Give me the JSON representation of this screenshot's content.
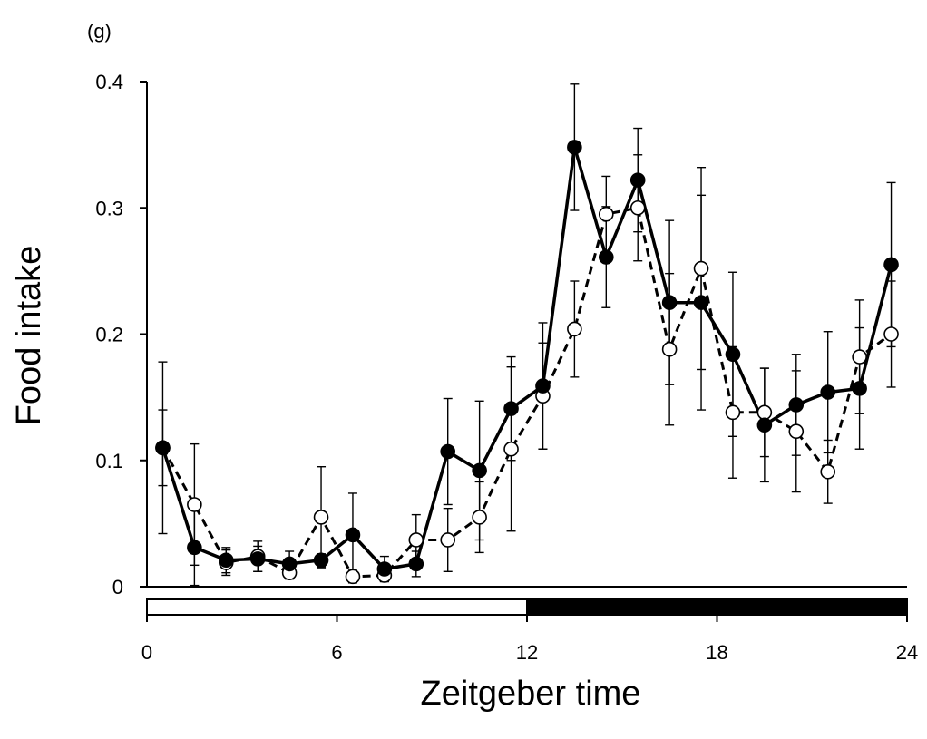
{
  "chart_data": {
    "type": "line",
    "panel_label": "(g)",
    "xlabel": "Zeitgeber time",
    "ylabel": "Food intake",
    "xlim": [
      0,
      24
    ],
    "ylim": [
      0,
      0.4
    ],
    "x_ticks": [
      0,
      6,
      12,
      18,
      24
    ],
    "x_tick_labels": [
      "0",
      "6",
      "12",
      "18",
      "24"
    ],
    "y_ticks": [
      0,
      0.1,
      0.2,
      0.3,
      0.4
    ],
    "y_tick_labels": [
      "0",
      "0.1",
      "0.2",
      "0.3",
      "0.4"
    ],
    "light_dark_bar": [
      {
        "phase": "light",
        "start": 0,
        "end": 12,
        "color": "#ffffff"
      },
      {
        "phase": "dark",
        "start": 12,
        "end": 24,
        "color": "#000000"
      }
    ],
    "x": [
      0.5,
      1.5,
      2.5,
      3.5,
      4.5,
      5.5,
      6.5,
      7.5,
      8.5,
      9.5,
      10.5,
      11.5,
      12.5,
      13.5,
      14.5,
      15.5,
      16.5,
      17.5,
      18.5,
      19.5,
      20.5,
      21.5,
      22.5,
      23.5
    ],
    "series": [
      {
        "marker": "filled",
        "line": "solid",
        "color": "#000000",
        "values": [
          0.11,
          0.031,
          0.021,
          0.022,
          0.018,
          0.021,
          0.041,
          0.014,
          0.018,
          0.107,
          0.092,
          0.141,
          0.159,
          0.348,
          0.261,
          0.322,
          0.225,
          0.225,
          0.184,
          0.128,
          0.144,
          0.154,
          0.157,
          0.255
        ],
        "error": [
          0.068,
          0.03,
          0.01,
          0.01,
          0.01,
          0.005,
          0.033,
          0.01,
          0.01,
          0.042,
          0.055,
          0.041,
          0.05,
          0.05,
          0.04,
          0.041,
          0.065,
          0.085,
          0.065,
          0.045,
          0.04,
          0.048,
          0.048,
          0.065
        ]
      },
      {
        "marker": "open",
        "line": "dashed",
        "color": "#000000",
        "values": [
          0.11,
          0.065,
          0.019,
          0.024,
          0.011,
          0.055,
          0.008,
          0.009,
          0.037,
          0.037,
          0.055,
          0.109,
          0.151,
          0.204,
          0.295,
          0.3,
          0.188,
          0.252,
          0.138,
          0.138,
          0.123,
          0.091,
          0.182,
          0.2
        ],
        "error": [
          0.03,
          0.048,
          0.01,
          0.012,
          0.005,
          0.04,
          0.005,
          0.005,
          0.02,
          0.025,
          0.028,
          0.065,
          0.042,
          0.038,
          0.03,
          0.042,
          0.06,
          0.08,
          0.052,
          0.035,
          0.048,
          0.025,
          0.045,
          0.042
        ]
      }
    ]
  }
}
